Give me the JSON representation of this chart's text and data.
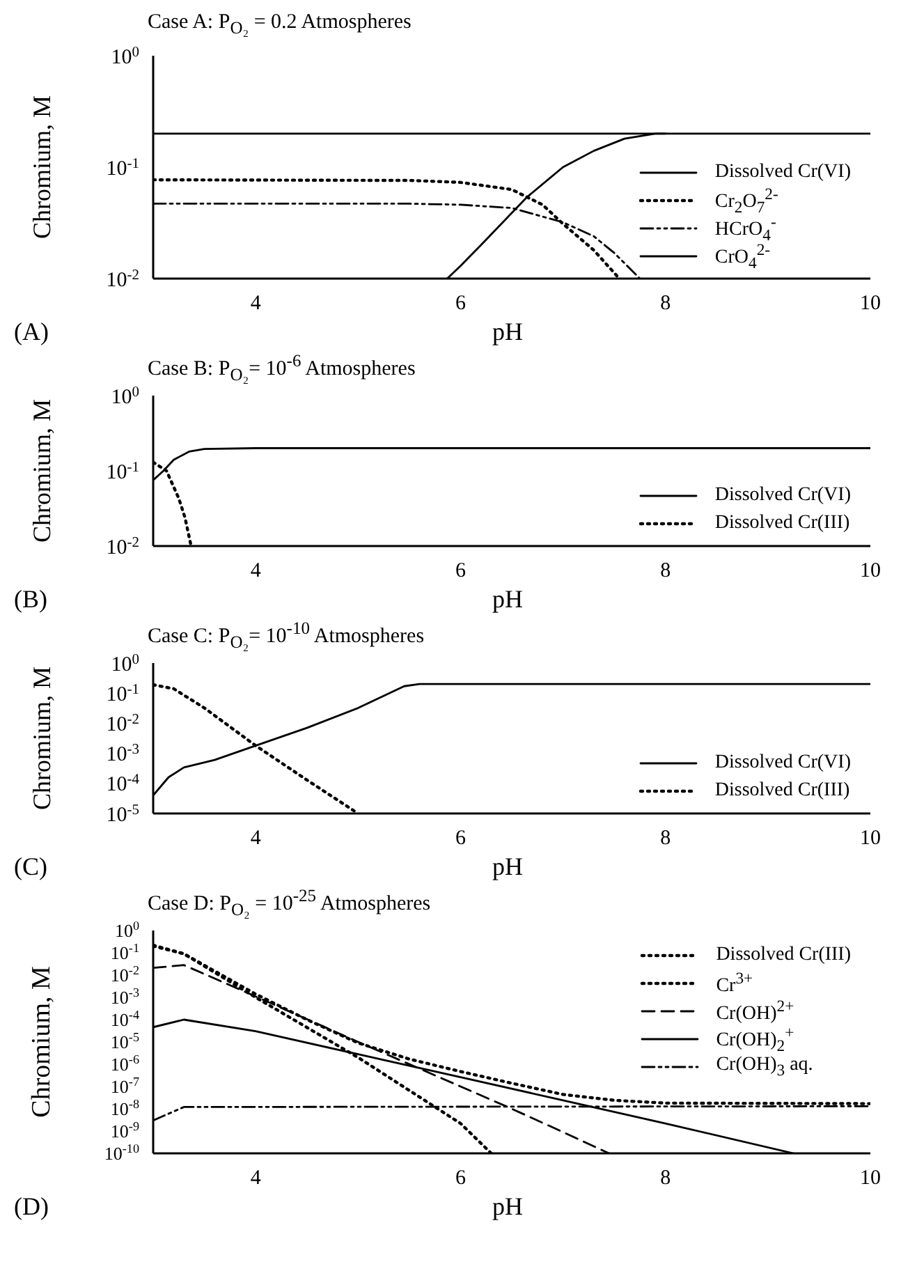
{
  "chart_data": [
    {
      "type": "line",
      "title": "Case A:  P$_{O₂}$ = 0.2 Atmospheres",
      "xlabel": "pH",
      "ylabel": "Chromium, M",
      "annotations": [
        "(A)"
      ],
      "log": "y",
      "legend": "bottom right",
      "xlim": [
        3,
        10
      ],
      "xticks": [
        4,
        6,
        8,
        10
      ],
      "ylim": [
        0.01,
        1
      ],
      "yticks": [
        {
          "value": 0.01,
          "label": "10$^{-2}$"
        },
        {
          "value": 0.1,
          "label": "10$^{-1}$"
        },
        {
          "value": 1,
          "label": "10$^{0}$"
        }
      ],
      "series": [
        {
          "name": "Dissolved Cr(VI)",
          "color": "#000000",
          "line_style": "solid",
          "x": [
            3,
            10
          ],
          "values": [
            0.2,
            0.2
          ]
        },
        {
          "name": "Cr$_{2}$O$_{7}$$^{2-}$",
          "color": "#000000",
          "line_style": "dotted",
          "x": [
            3,
            5.5,
            6,
            6.5,
            6.8,
            7,
            7.3,
            7.55
          ],
          "values": [
            0.077,
            0.076,
            0.073,
            0.063,
            0.046,
            0.031,
            0.018,
            0.01
          ]
        },
        {
          "name": "HCrO$_{4}$$^{-}$",
          "color": "#000000",
          "line_style": "dashdot",
          "x": [
            3,
            5.5,
            6,
            6.5,
            7,
            7.3,
            7.5,
            7.75
          ],
          "values": [
            0.047,
            0.047,
            0.046,
            0.043,
            0.032,
            0.024,
            0.017,
            0.01
          ]
        },
        {
          "name": "CrO$_{4}$$^{2-}$",
          "color": "#000000",
          "line_style": "solid",
          "x": [
            5.87,
            6,
            6.2,
            6.65,
            7,
            7.3,
            7.6,
            7.9,
            8
          ],
          "values": [
            0.01,
            0.013,
            0.02,
            0.054,
            0.1,
            0.14,
            0.18,
            0.2,
            0.2
          ]
        }
      ]
    },
    {
      "type": "line",
      "title": "Case B:  P$_{O₂}$= 10$^{-6}$ Atmospheres",
      "xlabel": "pH",
      "ylabel": "Chromium, M",
      "annotations": [
        "(B)"
      ],
      "log": "y",
      "legend": "bottom right",
      "xlim": [
        3,
        10
      ],
      "xticks": [
        4,
        6,
        8,
        10
      ],
      "ylim": [
        0.01,
        1
      ],
      "yticks": [
        {
          "value": 0.01,
          "label": "10$^{-2}$"
        },
        {
          "value": 0.1,
          "label": "10$^{-1}$"
        },
        {
          "value": 1,
          "label": "10$^{0}$"
        }
      ],
      "series": [
        {
          "name": "Dissolved Cr(VI)",
          "color": "#000000",
          "line_style": "solid",
          "x": [
            3,
            3.1,
            3.2,
            3.35,
            3.5,
            4,
            10
          ],
          "values": [
            0.075,
            0.1,
            0.14,
            0.18,
            0.195,
            0.2,
            0.2
          ]
        },
        {
          "name": "Dissolved Cr(III)",
          "color": "#000000",
          "line_style": "dotted",
          "x": [
            3,
            3.13,
            3.25,
            3.31,
            3.37
          ],
          "values": [
            0.13,
            0.1,
            0.043,
            0.024,
            0.01
          ]
        }
      ]
    },
    {
      "type": "line",
      "title": "Case C:  P$_{O₂}$= 10$^{-10}$ Atmospheres",
      "xlabel": "pH",
      "ylabel": "Chromium, M",
      "annotations": [
        "(C)"
      ],
      "log": "y",
      "legend": "bottom right",
      "xlim": [
        3,
        10
      ],
      "xticks": [
        4,
        6,
        8,
        10
      ],
      "ylim": [
        1e-05,
        1
      ],
      "yticks": [
        {
          "value": 1e-05,
          "label": "10$^{-5}$"
        },
        {
          "value": 0.0001,
          "label": "10$^{-4}$"
        },
        {
          "value": 0.001,
          "label": "10$^{-3}$"
        },
        {
          "value": 0.01,
          "label": "10$^{-2}$"
        },
        {
          "value": 0.1,
          "label": "10$^{-1}$"
        },
        {
          "value": 1,
          "label": "10$^{0}$"
        }
      ],
      "series": [
        {
          "name": "Dissolved Cr(VI)",
          "color": "#000000",
          "line_style": "solid",
          "x": [
            3,
            3.15,
            3.3,
            3.6,
            4,
            4.5,
            5,
            5.45,
            5.6,
            10
          ],
          "values": [
            4e-05,
            0.00016,
            0.00034,
            0.0006,
            0.0018,
            0.007,
            0.032,
            0.17,
            0.2,
            0.2
          ]
        },
        {
          "name": "Dissolved Cr(III)",
          "color": "#000000",
          "line_style": "dotted",
          "x": [
            3,
            3.2,
            3.5,
            4,
            4.5,
            5
          ],
          "values": [
            0.19,
            0.14,
            0.032,
            0.0018,
            0.00013,
            1e-05
          ]
        }
      ]
    },
    {
      "type": "line",
      "title": "Case D:  P$_{O₂}$ = 10$^{-25}$ Atmospheres",
      "xlabel": "pH",
      "ylabel": "Chromium, M",
      "annotations": [
        "(D)"
      ],
      "log": "y",
      "legend": "top right",
      "xlim": [
        3,
        10
      ],
      "xticks": [
        4,
        6,
        8,
        10
      ],
      "ylim": [
        1e-10,
        1
      ],
      "yticks": [
        {
          "value": 1e-10,
          "label": "10$^{-10}$"
        },
        {
          "value": 1e-09,
          "label": "10$^{-9}$"
        },
        {
          "value": 1e-08,
          "label": "10$^{-8}$"
        },
        {
          "value": 1e-07,
          "label": "10$^{-7}$"
        },
        {
          "value": 1e-06,
          "label": "10$^{-6}$"
        },
        {
          "value": 1e-05,
          "label": "10$^{-5}$"
        },
        {
          "value": 0.0001,
          "label": "10$^{-4}$"
        },
        {
          "value": 0.001,
          "label": "10$^{-3}$"
        },
        {
          "value": 0.01,
          "label": "10$^{-2}$"
        },
        {
          "value": 0.1,
          "label": "10$^{-1}$"
        },
        {
          "value": 1,
          "label": "10$^{0}$"
        }
      ],
      "series": [
        {
          "name": "Dissolved Cr(III)",
          "color": "#000000",
          "line_style": "dotted",
          "x": [
            3,
            3.3,
            4,
            4.5,
            5,
            5.5,
            6,
            6.5,
            7,
            7.5,
            8,
            10
          ],
          "values": [
            0.22,
            0.09,
            0.0014,
            0.0001,
            9e-06,
            1.7e-06,
            4.7e-07,
            1.4e-07,
            4.4e-08,
            2.4e-08,
            1.8e-08,
            1.7e-08
          ]
        },
        {
          "name": "Cr$^{3+}$",
          "color": "#000000",
          "line_style": "dotted",
          "x": [
            3,
            3.3,
            4,
            5,
            6,
            6.3
          ],
          "values": [
            0.2,
            0.09,
            0.001,
            2e-06,
            2.2e-09,
            1e-10
          ]
        },
        {
          "name": "Cr(OH)$^{2+}$",
          "color": "#000000",
          "line_style": "dashed",
          "x": [
            3,
            3.3,
            4,
            5,
            6,
            6.5,
            7,
            7.45
          ],
          "values": [
            0.021,
            0.028,
            0.0011,
            1e-05,
            1e-07,
            1e-08,
            9e-10,
            1e-10
          ]
        },
        {
          "name": "Cr(OH)$_{2}$$^{+}$",
          "color": "#000000",
          "line_style": "solid",
          "x": [
            3,
            3.3,
            4,
            5,
            6,
            7,
            8,
            9.25
          ],
          "values": [
            4.6e-05,
            0.0001,
            3e-05,
            2.8e-06,
            2.6e-07,
            2.4e-08,
            2.2e-09,
            1e-10
          ]
        },
        {
          "name": "Cr(OH)$_{3}$ aq.",
          "color": "#000000",
          "line_style": "dashdot",
          "x": [
            3,
            3.3,
            10
          ],
          "values": [
            3e-09,
            1.2e-08,
            1.3e-08
          ]
        }
      ]
    }
  ]
}
